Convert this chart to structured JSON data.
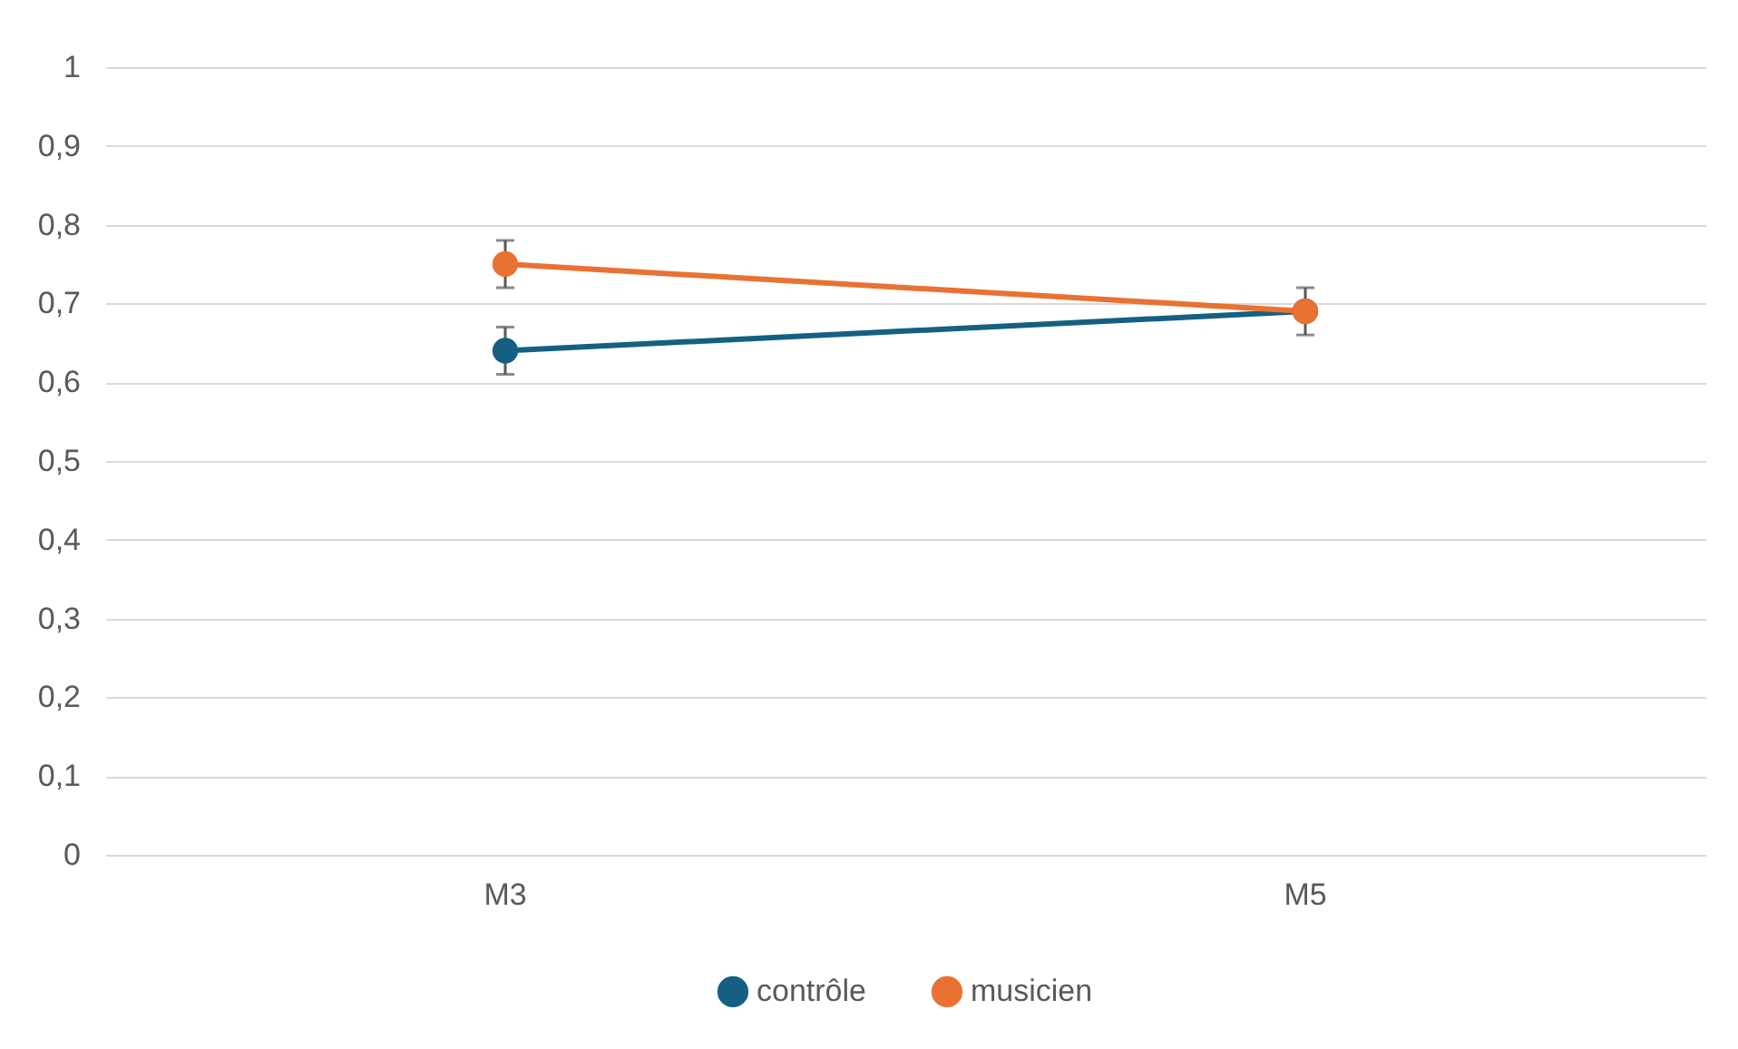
{
  "chart_data": {
    "type": "line",
    "categories": [
      "M3",
      "M5"
    ],
    "series": [
      {
        "name": "contrôle",
        "color": "#156082",
        "values": [
          0.64,
          0.69
        ],
        "errors": [
          0.03,
          0.03
        ]
      },
      {
        "name": "musicien",
        "color": "#e97132",
        "values": [
          0.75,
          0.69
        ],
        "errors": [
          0.03,
          0.03
        ]
      }
    ],
    "ylim": [
      0,
      1
    ],
    "yticks": [
      0,
      {
        "value": 0.1,
        "label": "0,1"
      },
      {
        "value": 0.2,
        "label": "0,2"
      },
      {
        "value": 0.3,
        "label": "0,3"
      },
      {
        "value": 0.4,
        "label": "0,4"
      },
      {
        "value": 0.5,
        "label": "0,5"
      },
      {
        "value": 0.6,
        "label": "0,6"
      },
      {
        "value": 0.7,
        "label": "0,7"
      },
      {
        "value": 0.8,
        "label": "0,8"
      },
      {
        "value": 0.9,
        "label": "0,9"
      },
      1
    ],
    "grid": "y",
    "legend": "bottom",
    "marker": "circle",
    "line_style": "solid"
  }
}
